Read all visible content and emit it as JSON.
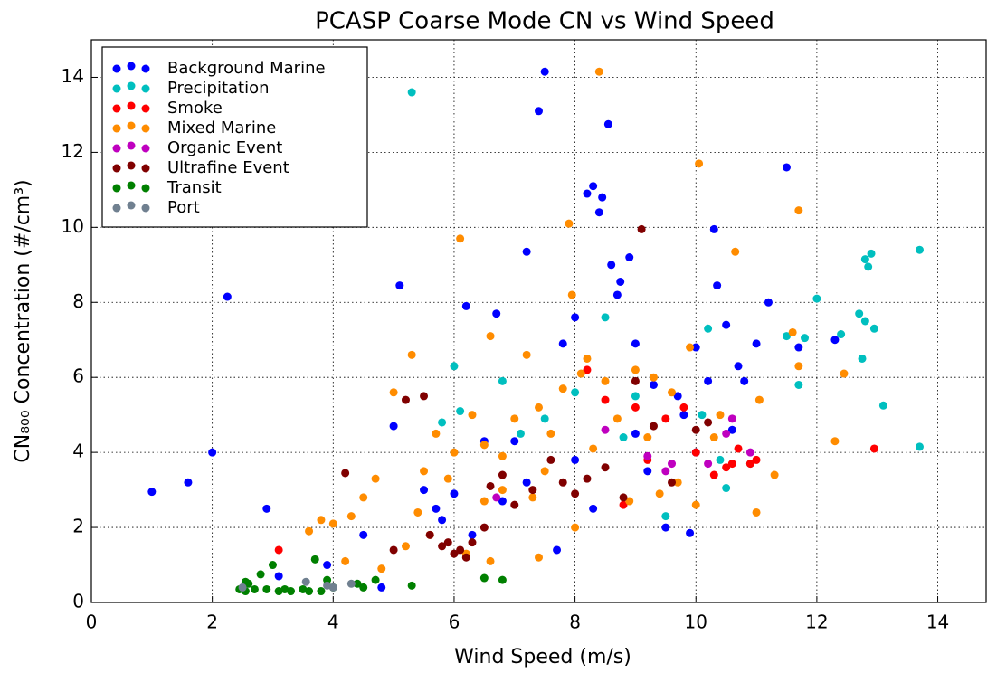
{
  "chart_data": {
    "type": "scatter",
    "title": "PCASP Coarse Mode CN vs Wind Speed",
    "x_label": "Wind Speed (m/s)",
    "y_label": "CN₈₀₀ Concentration (#/cm³)",
    "xlim": [
      0,
      14.8
    ],
    "ylim": [
      0,
      15
    ],
    "xticks": [
      0,
      2,
      4,
      6,
      8,
      10,
      12,
      14
    ],
    "yticks": [
      0,
      2,
      4,
      6,
      8,
      10,
      12,
      14
    ],
    "grid": true,
    "legend": "upper left",
    "series": [
      {
        "name": "Background Marine",
        "color": "#0000ff",
        "x": [
          1,
          1.6,
          2,
          2.25,
          2.9,
          3.1,
          3.9,
          4.5,
          4.8,
          5,
          5.1,
          5.5,
          5.8,
          6,
          6.2,
          6.5,
          6.7,
          6.8,
          7,
          7.2,
          7.4,
          7.5,
          7.7,
          7.8,
          8,
          8.2,
          8.3,
          8.4,
          8.45,
          8.55,
          8.6,
          8.7,
          8.75,
          8.9,
          9,
          9.2,
          9.3,
          9.5,
          9.7,
          9.8,
          9.9,
          10,
          10.3,
          10.35,
          10.5,
          10.7,
          11,
          11.2,
          11.5,
          11.7,
          12.3,
          8,
          8.3,
          9,
          10,
          7.2,
          6.3,
          5.7,
          10.2,
          10.8,
          10.6
        ],
        "values": [
          2.95,
          3.2,
          4,
          8.15,
          2.5,
          0.7,
          1.0,
          1.8,
          0.4,
          4.7,
          8.45,
          3.0,
          2.2,
          2.9,
          7.9,
          4.3,
          7.7,
          2.7,
          4.3,
          9.35,
          13.1,
          14.15,
          1.4,
          6.9,
          7.6,
          10.9,
          11.1,
          10.4,
          10.8,
          12.75,
          9.0,
          8.2,
          8.55,
          9.2,
          6.9,
          3.5,
          5.8,
          2.0,
          5.5,
          5.0,
          1.85,
          6.8,
          9.95,
          8.45,
          7.4,
          6.3,
          6.9,
          8.0,
          11.6,
          6.8,
          7.0,
          3.8,
          2.5,
          4.5,
          4.0,
          3.2,
          1.8,
          2.5,
          5.9,
          5.9,
          4.6
        ]
      },
      {
        "name": "Precipitation",
        "color": "#00bfbf",
        "x": [
          5.3,
          5.8,
          6,
          6.8,
          7.5,
          8,
          8.5,
          8.8,
          9,
          9.5,
          10.1,
          10.2,
          10.4,
          10.5,
          10.9,
          11.5,
          11.7,
          11.8,
          12.0,
          12.4,
          12.7,
          12.75,
          12.8,
          12.8,
          12.85,
          12.9,
          12.95,
          13.1,
          13.7,
          13.7,
          6.1,
          7.1
        ],
        "values": [
          13.6,
          4.8,
          6.3,
          5.9,
          4.9,
          5.6,
          7.6,
          4.4,
          5.5,
          2.3,
          5.0,
          7.3,
          3.8,
          3.05,
          3.7,
          7.1,
          5.8,
          7.05,
          8.1,
          7.15,
          7.7,
          6.5,
          7.5,
          9.15,
          8.95,
          9.3,
          7.3,
          5.25,
          9.4,
          4.15,
          5.1,
          4.5
        ]
      },
      {
        "name": "Smoke",
        "color": "#ff0000",
        "x": [
          3.1,
          8.2,
          8.5,
          9,
          9.5,
          9.8,
          10,
          10.3,
          10.5,
          10.6,
          10.7,
          10.9,
          11,
          12.95,
          9.2,
          8.8
        ],
        "values": [
          1.4,
          6.2,
          5.4,
          5.2,
          4.9,
          5.2,
          4.0,
          3.4,
          3.6,
          3.7,
          4.1,
          3.7,
          3.8,
          4.1,
          3.8,
          2.6
        ]
      },
      {
        "name": "Mixed Marine",
        "color": "#ff8c00",
        "x": [
          3.6,
          3.8,
          4.0,
          4.3,
          4.5,
          4.7,
          5,
          5.3,
          5.5,
          5.7,
          6,
          6.1,
          6.3,
          6.5,
          6.6,
          6.8,
          7,
          7.2,
          7.4,
          7.6,
          7.8,
          7.9,
          7.95,
          8.1,
          8.2,
          8.4,
          8.5,
          8.7,
          9,
          9.3,
          9.6,
          9.9,
          10.05,
          10.4,
          10.65,
          11.05,
          11.3,
          11.6,
          11.7,
          11.7,
          12.3,
          12.45,
          4.2,
          4.8,
          5.2,
          5.6,
          6.2,
          6.6,
          7.4,
          8.0,
          8.9,
          9.4,
          10,
          11,
          5.4,
          6.8,
          7.5,
          8.3,
          9.2,
          9.7,
          10.3,
          7.3,
          6.5,
          5.9
        ],
        "values": [
          1.9,
          2.2,
          2.1,
          2.3,
          2.8,
          3.3,
          5.6,
          6.6,
          3.5,
          4.5,
          4.0,
          9.7,
          5.0,
          4.2,
          7.1,
          3.0,
          4.9,
          6.6,
          5.2,
          4.5,
          5.7,
          10.1,
          8.2,
          6.1,
          6.5,
          14.15,
          5.9,
          4.9,
          6.2,
          6.0,
          5.6,
          6.8,
          11.7,
          5.0,
          9.35,
          5.4,
          3.4,
          7.2,
          10.45,
          6.3,
          4.3,
          6.1,
          1.1,
          0.9,
          1.5,
          1.8,
          1.3,
          1.1,
          1.2,
          2.0,
          2.7,
          2.9,
          2.6,
          2.4,
          2.4,
          3.9,
          3.5,
          4.1,
          4.4,
          3.2,
          4.4,
          2.8,
          2.7,
          3.3
        ]
      },
      {
        "name": "Organic Event",
        "color": "#bf00bf",
        "x": [
          6.7,
          8.5,
          9.2,
          9.5,
          9.6,
          10.2,
          10.5,
          10.6,
          10.9
        ],
        "values": [
          2.8,
          4.6,
          3.9,
          3.5,
          3.7,
          3.7,
          4.5,
          4.9,
          4.0
        ]
      },
      {
        "name": "Ultrafine Event",
        "color": "#800000",
        "x": [
          4.2,
          5,
          5.2,
          5.5,
          5.6,
          5.8,
          5.9,
          6,
          6.1,
          6.2,
          6.3,
          6.5,
          6.6,
          6.8,
          7,
          7.3,
          7.6,
          7.8,
          8,
          8.2,
          8.5,
          8.8,
          9,
          9.1,
          9.3,
          9.6,
          10,
          10.2
        ],
        "values": [
          3.45,
          1.4,
          5.4,
          5.5,
          1.8,
          1.5,
          1.6,
          1.3,
          1.4,
          1.2,
          1.6,
          2.0,
          3.1,
          3.4,
          2.6,
          3.0,
          3.8,
          3.2,
          2.9,
          3.3,
          3.6,
          2.8,
          5.9,
          9.95,
          4.7,
          3.2,
          4.6,
          4.8
        ]
      },
      {
        "name": "Transit",
        "color": "#008000",
        "x": [
          2.45,
          2.55,
          2.6,
          2.7,
          2.8,
          2.9,
          3.0,
          3.2,
          3.3,
          3.5,
          3.6,
          3.7,
          3.8,
          3.9,
          4.0,
          4.4,
          4.5,
          4.7,
          5.3,
          6.5,
          6.8,
          3.1,
          2.55
        ],
        "values": [
          0.35,
          0.55,
          0.5,
          0.35,
          0.75,
          0.35,
          1.0,
          0.35,
          0.3,
          0.35,
          0.3,
          1.15,
          0.3,
          0.6,
          0.4,
          0.5,
          0.4,
          0.6,
          0.45,
          0.65,
          0.6,
          0.3,
          0.3
        ]
      },
      {
        "name": "Port",
        "color": "#708090",
        "x": [
          2.5,
          3.55,
          4.0,
          4.3,
          3.9
        ],
        "values": [
          0.4,
          0.55,
          0.4,
          0.5,
          0.45
        ]
      }
    ]
  }
}
